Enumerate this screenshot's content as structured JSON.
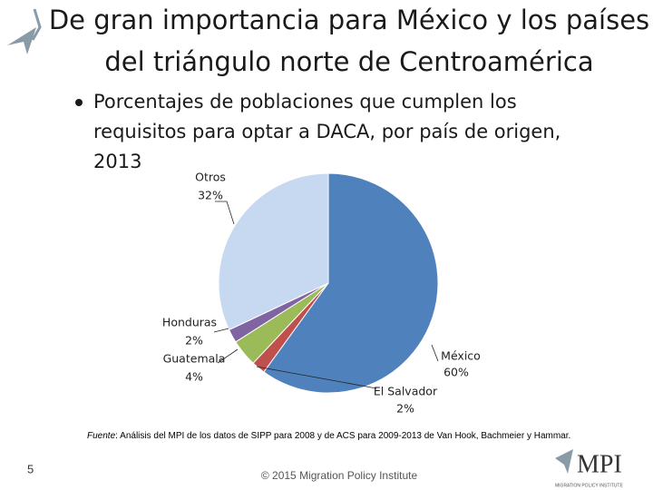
{
  "chart_data": {
    "type": "pie",
    "title": [
      "De gran importancia para México y los países",
      "del triángulo norte de Centroamérica"
    ],
    "subtitle": [
      "Porcentajes de poblaciones que cumplen los",
      "requisitos para optar a DACA, por país de origen,",
      "2013"
    ],
    "categories": [
      "México",
      "El Salvador",
      "Guatemala",
      "Honduras",
      "Otros"
    ],
    "values": [
      60,
      2,
      4,
      2,
      32
    ],
    "value_labels": [
      "60%",
      "2%",
      "4%",
      "2%",
      "32%"
    ],
    "colors": [
      "#4f81bd",
      "#c0504d",
      "#9bbb59",
      "#8064a2",
      "#c6d9f1"
    ],
    "source_label": "Fuente",
    "source_text": ": Análisis del MPI de los datos de SIPP para 2008 y de ACS para 2009-2013 de Van Hook, Bachmeier y Hammar."
  },
  "footer": {
    "page_number": "5",
    "copyright": "© 2015 Migration Policy Institute",
    "logo": "MPI",
    "logo_subtitle": "MIGRATION POLICY INSTITUTE"
  }
}
